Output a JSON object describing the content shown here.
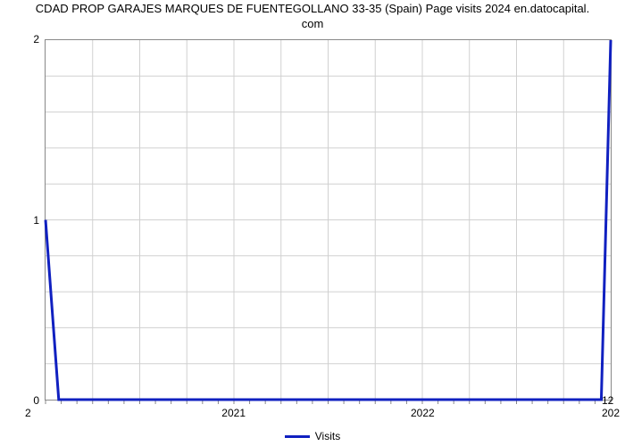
{
  "chart": {
    "type": "line",
    "title_line1": "CDAD PROP GARAJES MARQUES DE FUENTEGOLLANO 33-35 (Spain) Page visits 2024 en.datocapital.",
    "title_line2": "com",
    "title_fontsize": 13,
    "title_color": "#222222",
    "background_color": "#ffffff",
    "plot_border_color": "#888888",
    "grid_color": "#d0d0d0",
    "xlim": [
      2020.0,
      2023.0
    ],
    "ylim": [
      0,
      2
    ],
    "ytick_positions": [
      0,
      1,
      2
    ],
    "ytick_labels": [
      "0",
      "1",
      "2"
    ],
    "major_xtick_positions": [
      2021,
      2022
    ],
    "major_xtick_labels": [
      "2021",
      "2022"
    ],
    "minor_xtick_step_months": 1,
    "legend": {
      "label": "Visits",
      "swatch_color": "#1020c0"
    },
    "series": {
      "name": "Visits",
      "color": "#1020c0",
      "x": [
        2020.0,
        2020.07,
        2022.95,
        2023.0
      ],
      "y": [
        1.0,
        0.0,
        0.0,
        2.0
      ]
    },
    "corner_left_label": "2",
    "corner_right_top": "12",
    "corner_right_bottom": "202"
  }
}
